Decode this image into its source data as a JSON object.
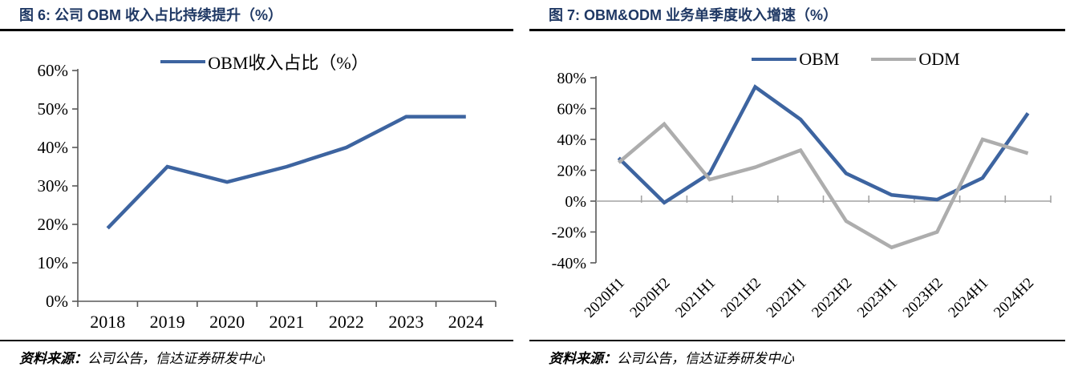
{
  "colors": {
    "obm_blue": "#3D64A0",
    "odm_gray": "#ADADAD",
    "title_navy": "#1F3864",
    "axis_dark": "#595959",
    "zero_line_gray": "#A3A3A3"
  },
  "figures": [
    {
      "title": "图 6: 公司 OBM 收入占比持续提升（%）",
      "legend": [
        {
          "label": "OBM收入占比（%）",
          "color_key": "obm_blue"
        }
      ],
      "source_label": "资料来源：",
      "source_text": "公司公告，信达证券研发中心",
      "chart_data": {
        "type": "line",
        "categories": [
          "2018",
          "2019",
          "2020",
          "2021",
          "2022",
          "2023",
          "2024"
        ],
        "series": [
          {
            "name": "OBM收入占比（%）",
            "values": [
              19,
              35,
              31,
              35,
              40,
              48,
              48
            ]
          }
        ],
        "ylim": [
          0,
          60
        ],
        "ytick_values": [
          60,
          50,
          40,
          30,
          20,
          10,
          0
        ],
        "ytick_labels": [
          "60%",
          "50%",
          "40%",
          "30%",
          "20%",
          "10%",
          "0%"
        ],
        "grid": false,
        "legend_position": "top"
      }
    },
    {
      "title": "图 7: OBM&ODM 业务单季度收入增速（%）",
      "legend": [
        {
          "label": "OBM",
          "color_key": "obm_blue"
        },
        {
          "label": "ODM",
          "color_key": "odm_gray"
        }
      ],
      "source_label": "资料来源：",
      "source_text": "公司公告，信达证券研发中心",
      "chart_data": {
        "type": "line",
        "categories": [
          "2020H1",
          "2020H2",
          "2021H1",
          "2021H2",
          "2022H1",
          "2022H2",
          "2023H1",
          "2023H2",
          "2024H1",
          "2024H2"
        ],
        "series": [
          {
            "name": "OBM",
            "values": [
              28,
              -1,
              18,
              74,
              53,
              18,
              4,
              1,
              15,
              57
            ]
          },
          {
            "name": "ODM",
            "values": [
              25,
              50,
              14,
              22,
              33,
              -13,
              -30,
              -20,
              40,
              31
            ]
          }
        ],
        "ylim": [
          -40,
          80
        ],
        "ytick_values": [
          80,
          60,
          40,
          20,
          0,
          -20,
          -40
        ],
        "ytick_labels": [
          "80%",
          "60%",
          "40%",
          "20%",
          "0%",
          "-20%",
          "-40%"
        ],
        "grid": false,
        "legend_position": "top"
      }
    }
  ]
}
